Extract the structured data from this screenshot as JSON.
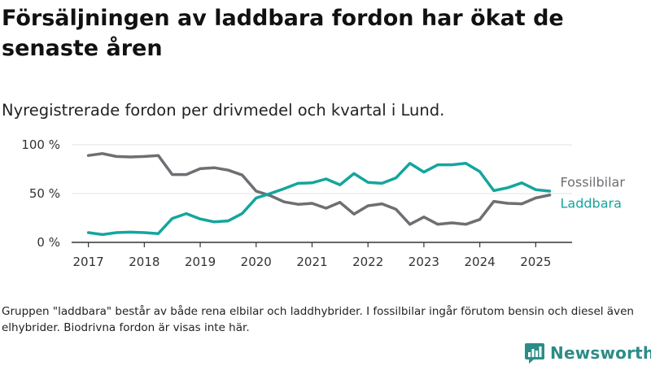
{
  "title": "Försäljningen av laddbara fordon har ökat de senaste åren",
  "subtitle": "Nyregistrerade fordon per drivmedel och kvartal i Lund.",
  "note": "Gruppen \"laddbara\" består av både rena elbilar och laddhybrider. I fossilbilar ingår förutom bensin och diesel även elhybrider. Biodrivna fordon är visas inte här.",
  "brand": {
    "name": "Newsworthy",
    "icon": "newsworthy-logo-icon",
    "color": "#2c8c87"
  },
  "chart_data": {
    "type": "line",
    "title": "Försäljningen av laddbara fordon har ökat de senaste åren",
    "subtitle": "Nyregistrerade fordon per drivmedel och kvartal i Lund.",
    "xlabel": "",
    "ylabel": "",
    "x": [
      2017.0,
      2017.25,
      2017.5,
      2017.75,
      2018.0,
      2018.25,
      2018.5,
      2018.75,
      2019.0,
      2019.25,
      2019.5,
      2019.75,
      2020.0,
      2020.25,
      2020.5,
      2020.75,
      2021.0,
      2021.25,
      2021.5,
      2021.75,
      2022.0,
      2022.25,
      2022.5,
      2022.75,
      2023.0,
      2023.25,
      2023.5,
      2023.75,
      2024.0,
      2024.25,
      2024.5,
      2024.75,
      2025.0,
      2025.25
    ],
    "xlim": [
      2016.7,
      2025.65
    ],
    "ylim": [
      0,
      100
    ],
    "x_ticks": [
      2017,
      2018,
      2019,
      2020,
      2021,
      2022,
      2023,
      2024,
      2025
    ],
    "x_tick_labels": [
      "2017",
      "2018",
      "2019",
      "2020",
      "2021",
      "2022",
      "2023",
      "2024",
      "2025"
    ],
    "y_ticks": [
      0,
      50,
      100
    ],
    "y_tick_labels": [
      "0 %",
      "50 %",
      "100 %"
    ],
    "grid": "horizontal",
    "legend": "end-of-line labels",
    "series": [
      {
        "name": "Fossilbilar",
        "color": "#6e6e73",
        "values": [
          89,
          91,
          88,
          87.5,
          88,
          89,
          69.5,
          69.5,
          75.5,
          76.5,
          74,
          69,
          52.5,
          48,
          41.5,
          39,
          40,
          35,
          41,
          29,
          37.5,
          39.5,
          34,
          18.5,
          26,
          18.5,
          20,
          18.5,
          23.5,
          42,
          40,
          39.5,
          45.5,
          48.5
        ]
      },
      {
        "name": "Laddbara",
        "color": "#13a69d",
        "values": [
          10,
          8,
          10,
          10.5,
          10,
          9,
          24.5,
          29.5,
          24,
          21,
          22,
          29.5,
          45.5,
          50,
          55,
          60.5,
          61,
          65,
          59,
          70.5,
          61.5,
          60.5,
          66,
          81,
          72,
          79.5,
          79.5,
          81,
          72.5,
          53,
          56,
          61,
          54,
          52.5
        ]
      }
    ]
  }
}
